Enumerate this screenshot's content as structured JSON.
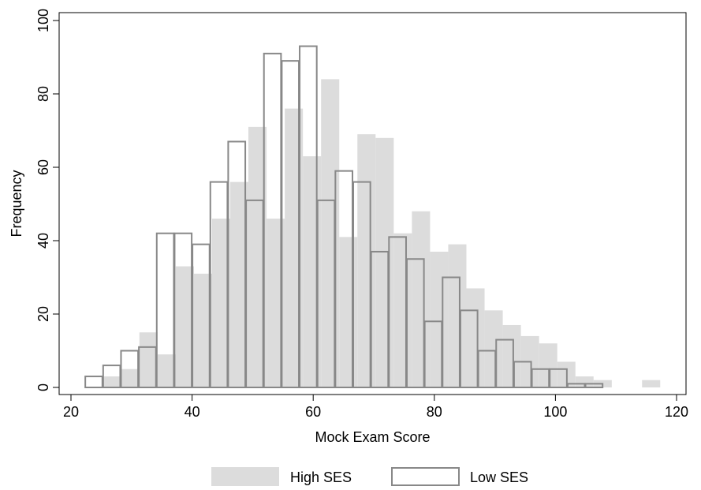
{
  "chart_data": {
    "type": "bar",
    "xlabel": "Mock Exam Score",
    "ylabel": "Frequency",
    "xlim": [
      20,
      120
    ],
    "ylim": [
      0,
      100
    ],
    "xticks": [
      20,
      40,
      60,
      80,
      100,
      120
    ],
    "yticks": [
      0,
      20,
      40,
      60,
      80,
      100
    ],
    "grid": false,
    "legend_position": "bottom",
    "series": [
      {
        "name": "High SES",
        "style": "filled",
        "color": "#dcdcdc",
        "bin_width": 3,
        "bins": [
          {
            "x0": 25.3,
            "count": 3
          },
          {
            "x0": 28.3,
            "count": 5
          },
          {
            "x0": 31.3,
            "count": 15
          },
          {
            "x0": 34.3,
            "count": 9
          },
          {
            "x0": 37.3,
            "count": 33
          },
          {
            "x0": 40.3,
            "count": 31
          },
          {
            "x0": 43.3,
            "count": 46
          },
          {
            "x0": 46.3,
            "count": 56
          },
          {
            "x0": 49.3,
            "count": 71
          },
          {
            "x0": 52.3,
            "count": 46
          },
          {
            "x0": 55.3,
            "count": 76
          },
          {
            "x0": 58.3,
            "count": 63
          },
          {
            "x0": 61.3,
            "count": 84
          },
          {
            "x0": 64.3,
            "count": 41
          },
          {
            "x0": 67.3,
            "count": 69
          },
          {
            "x0": 70.3,
            "count": 68
          },
          {
            "x0": 73.3,
            "count": 42
          },
          {
            "x0": 76.3,
            "count": 48
          },
          {
            "x0": 79.3,
            "count": 37
          },
          {
            "x0": 82.3,
            "count": 39
          },
          {
            "x0": 85.3,
            "count": 27
          },
          {
            "x0": 88.3,
            "count": 21
          },
          {
            "x0": 91.3,
            "count": 17
          },
          {
            "x0": 94.3,
            "count": 14
          },
          {
            "x0": 97.3,
            "count": 12
          },
          {
            "x0": 100.3,
            "count": 7
          },
          {
            "x0": 103.3,
            "count": 3
          },
          {
            "x0": 106.3,
            "count": 2
          },
          {
            "x0": 109.3,
            "count": 0
          },
          {
            "x0": 112.3,
            "count": 0
          },
          {
            "x0": 114.3,
            "count": 2
          }
        ]
      },
      {
        "name": "Low SES",
        "style": "outline",
        "color": "#888888",
        "bin_width": 2.95,
        "bins": [
          {
            "x0": 22.3,
            "count": 3
          },
          {
            "x0": 25.25,
            "count": 6
          },
          {
            "x0": 28.2,
            "count": 10
          },
          {
            "x0": 31.15,
            "count": 11
          },
          {
            "x0": 34.1,
            "count": 42
          },
          {
            "x0": 37.05,
            "count": 42
          },
          {
            "x0": 40.0,
            "count": 39
          },
          {
            "x0": 42.95,
            "count": 56
          },
          {
            "x0": 45.9,
            "count": 67
          },
          {
            "x0": 48.85,
            "count": 51
          },
          {
            "x0": 51.8,
            "count": 91
          },
          {
            "x0": 54.75,
            "count": 89
          },
          {
            "x0": 57.7,
            "count": 93
          },
          {
            "x0": 60.65,
            "count": 51
          },
          {
            "x0": 63.6,
            "count": 59
          },
          {
            "x0": 66.55,
            "count": 56
          },
          {
            "x0": 69.5,
            "count": 37
          },
          {
            "x0": 72.45,
            "count": 41
          },
          {
            "x0": 75.4,
            "count": 35
          },
          {
            "x0": 78.35,
            "count": 18
          },
          {
            "x0": 81.3,
            "count": 30
          },
          {
            "x0": 84.25,
            "count": 21
          },
          {
            "x0": 87.2,
            "count": 10
          },
          {
            "x0": 90.15,
            "count": 13
          },
          {
            "x0": 93.1,
            "count": 7
          },
          {
            "x0": 96.05,
            "count": 5
          },
          {
            "x0": 99.0,
            "count": 5
          },
          {
            "x0": 101.95,
            "count": 1
          },
          {
            "x0": 104.9,
            "count": 1
          }
        ]
      }
    ]
  }
}
